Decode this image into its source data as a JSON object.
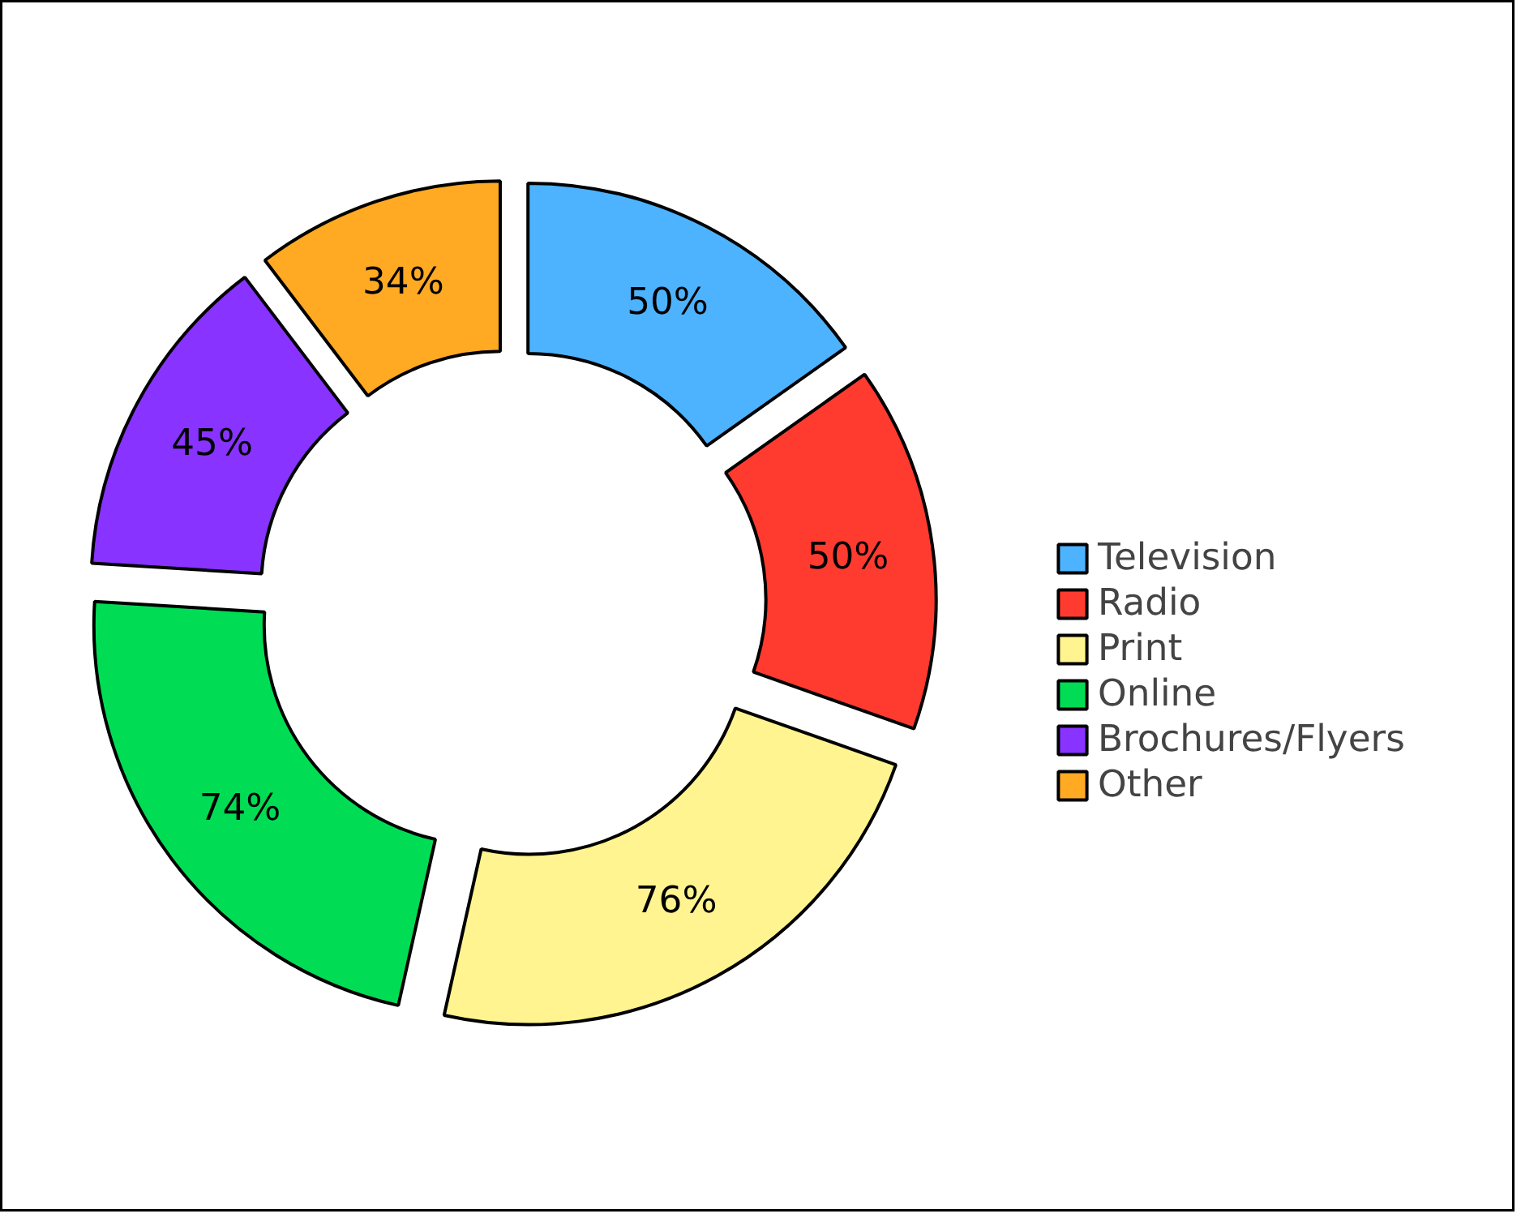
{
  "chart_data": {
    "type": "donut",
    "categories": [
      "Television",
      "Radio",
      "Print",
      "Online",
      "Brochures/Flyers",
      "Other"
    ],
    "values": [
      50,
      50,
      76,
      74,
      45,
      34
    ],
    "value_labels": [
      "50%",
      "50%",
      "76%",
      "74%",
      "45%",
      "34%"
    ],
    "colors": [
      "#4db3ff",
      "#ff3b30",
      "#fff48f",
      "#00dd55",
      "#8833ff",
      "#ffaa22"
    ],
    "legend": "right"
  }
}
